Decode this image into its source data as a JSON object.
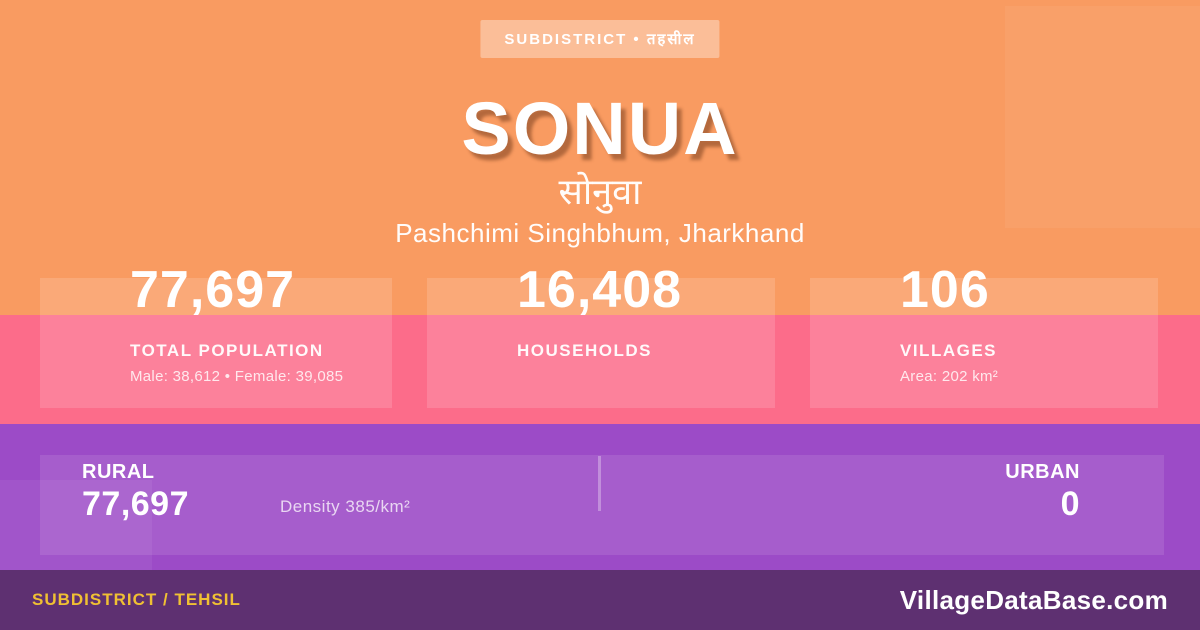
{
  "theme": {
    "orange": "#F99B61",
    "pink": "#FC6C8A",
    "purple": "#9C4BC7",
    "footer_purple": "#5E3071",
    "gold": "#F0C033",
    "text": "#FFFFFF"
  },
  "badge": {
    "label": "SUBDISTRICT • तहसील"
  },
  "header": {
    "title": "SONUA",
    "title_native": "सोनुवा",
    "location": "Pashchimi Singhbhum, Jharkhand"
  },
  "stats": [
    {
      "value": "77,697",
      "label": "TOTAL POPULATION",
      "sub": "Male: 38,612 • Female: 39,085"
    },
    {
      "value": "16,408",
      "label": "HOUSEHOLDS",
      "sub": ""
    },
    {
      "value": "106",
      "label": "VILLAGES",
      "sub": "Area: 202 km²"
    }
  ],
  "band": {
    "rural_label": "RURAL",
    "rural_value": "77,697",
    "density": "Density 385/km²",
    "urban_label": "URBAN",
    "urban_value": "0"
  },
  "footer": {
    "left": "SUBDISTRICT / TEHSIL",
    "right": "VillageDataBase.com"
  }
}
